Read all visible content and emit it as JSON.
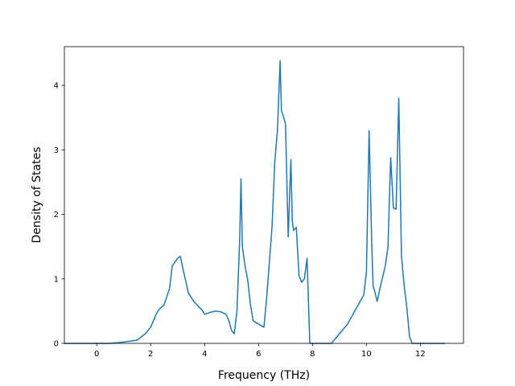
{
  "chart_data": {
    "type": "line",
    "title": "",
    "xlabel": "Frequency (THz)",
    "ylabel": "Density of States",
    "xlim": [
      -1.2,
      13.6
    ],
    "ylim": [
      0,
      4.6
    ],
    "x_ticks": [
      0,
      2,
      4,
      6,
      8,
      10,
      12
    ],
    "y_ticks": [
      0,
      1,
      2,
      3,
      4
    ],
    "grid": false,
    "legend": "none",
    "series": [
      {
        "color": "#1f77b4",
        "x": [
          -1.2,
          0.0,
          0.5,
          1.0,
          1.5,
          1.8,
          2.0,
          2.2,
          2.3,
          2.5,
          2.7,
          2.8,
          3.0,
          3.1,
          3.2,
          3.4,
          3.6,
          3.8,
          3.9,
          4.0,
          4.2,
          4.4,
          4.6,
          4.8,
          4.9,
          5.0,
          5.1,
          5.2,
          5.3,
          5.35,
          5.4,
          5.5,
          5.6,
          5.7,
          5.8,
          6.0,
          6.2,
          6.3,
          6.5,
          6.6,
          6.7,
          6.8,
          6.85,
          6.9,
          7.0,
          7.1,
          7.2,
          7.25,
          7.3,
          7.4,
          7.5,
          7.6,
          7.7,
          7.8,
          7.9,
          8.0,
          8.5,
          8.7,
          8.9,
          9.1,
          9.3,
          9.5,
          9.7,
          9.9,
          10.0,
          10.1,
          10.2,
          10.25,
          10.3,
          10.4,
          10.5,
          10.7,
          10.8,
          10.9,
          11.0,
          11.1,
          11.2,
          11.3,
          11.4,
          11.5,
          11.6,
          11.7,
          12.0,
          12.9
        ],
        "y": [
          0,
          0,
          0,
          0.02,
          0.05,
          0.15,
          0.25,
          0.45,
          0.52,
          0.6,
          0.85,
          1.2,
          1.32,
          1.35,
          1.15,
          0.78,
          0.65,
          0.56,
          0.52,
          0.45,
          0.48,
          0.5,
          0.49,
          0.45,
          0.35,
          0.2,
          0.15,
          0.5,
          1.6,
          2.55,
          1.5,
          1.2,
          0.98,
          0.6,
          0.35,
          0.3,
          0.25,
          0.7,
          1.8,
          2.8,
          3.3,
          4.38,
          3.6,
          3.55,
          3.4,
          1.65,
          2.85,
          1.9,
          1.75,
          1.8,
          1.05,
          0.95,
          1.0,
          1.32,
          0,
          0,
          0,
          0,
          0.1,
          0.2,
          0.3,
          0.45,
          0.6,
          0.75,
          1.1,
          3.3,
          1.5,
          0.88,
          0.82,
          0.65,
          0.85,
          1.2,
          1.5,
          2.88,
          2.1,
          2.08,
          3.8,
          1.35,
          0.9,
          0.55,
          0.1,
          0,
          0,
          0
        ]
      }
    ]
  }
}
